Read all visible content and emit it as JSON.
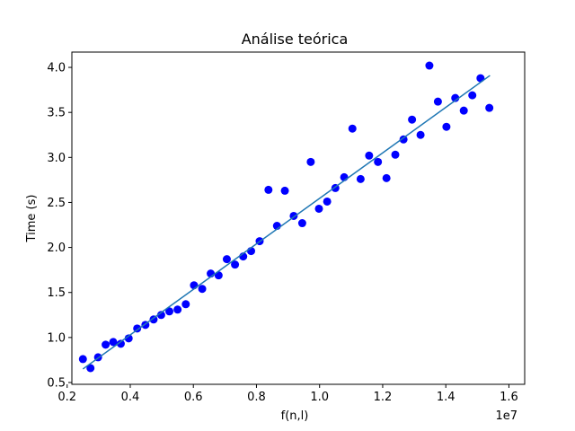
{
  "chart_data": {
    "type": "scatter",
    "title": "Análise teórica",
    "xlabel": "f(n,l)",
    "ylabel": "Time (s)",
    "x_offset_label": "1e7",
    "xlim": [
      2.15,
      16.5
    ],
    "ylim": [
      0.48,
      4.17
    ],
    "x_scale": 10000000,
    "xticks": [
      2,
      4,
      6,
      8,
      10,
      12,
      14,
      16
    ],
    "xtick_labels": [
      "0.2",
      "0.4",
      "0.6",
      "0.8",
      "1.0",
      "1.2",
      "1.4",
      "1.6"
    ],
    "yticks": [
      0.5,
      1.0,
      1.5,
      2.0,
      2.5,
      3.0,
      3.5,
      4.0
    ],
    "ytick_labels": [
      "0.5",
      "1.0",
      "1.5",
      "2.0",
      "2.5",
      "3.0",
      "3.5",
      "4.0"
    ],
    "grid": false,
    "series": [
      {
        "type": "scatter",
        "color": "#0000ff",
        "points": [
          [
            2.5,
            0.76
          ],
          [
            2.74,
            0.66
          ],
          [
            2.98,
            0.78
          ],
          [
            3.22,
            0.92
          ],
          [
            3.46,
            0.95
          ],
          [
            3.7,
            0.93
          ],
          [
            3.95,
            0.99
          ],
          [
            4.22,
            1.1
          ],
          [
            4.48,
            1.14
          ],
          [
            4.74,
            1.2
          ],
          [
            4.98,
            1.25
          ],
          [
            5.24,
            1.29
          ],
          [
            5.5,
            1.31
          ],
          [
            5.76,
            1.37
          ],
          [
            6.02,
            1.58
          ],
          [
            6.28,
            1.54
          ],
          [
            6.55,
            1.71
          ],
          [
            6.8,
            1.69
          ],
          [
            7.06,
            1.87
          ],
          [
            7.32,
            1.81
          ],
          [
            7.58,
            1.9
          ],
          [
            7.83,
            1.96
          ],
          [
            8.1,
            2.07
          ],
          [
            8.38,
            2.64
          ],
          [
            8.65,
            2.24
          ],
          [
            8.9,
            2.63
          ],
          [
            9.18,
            2.35
          ],
          [
            9.45,
            2.27
          ],
          [
            9.72,
            2.95
          ],
          [
            9.98,
            2.43
          ],
          [
            10.24,
            2.51
          ],
          [
            10.5,
            2.66
          ],
          [
            10.78,
            2.78
          ],
          [
            11.04,
            3.32
          ],
          [
            11.3,
            2.76
          ],
          [
            11.57,
            3.02
          ],
          [
            11.85,
            2.95
          ],
          [
            12.12,
            2.77
          ],
          [
            12.4,
            3.03
          ],
          [
            12.66,
            3.2
          ],
          [
            12.93,
            3.42
          ],
          [
            13.2,
            3.25
          ],
          [
            13.48,
            4.02
          ],
          [
            13.75,
            3.62
          ],
          [
            14.02,
            3.34
          ],
          [
            14.3,
            3.66
          ],
          [
            14.57,
            3.52
          ],
          [
            14.84,
            3.69
          ],
          [
            15.1,
            3.88
          ],
          [
            15.38,
            3.55
          ]
        ]
      },
      {
        "type": "line",
        "color": "#1f77b4",
        "points": [
          [
            2.5,
            0.65
          ],
          [
            15.4,
            3.91
          ]
        ]
      }
    ]
  }
}
